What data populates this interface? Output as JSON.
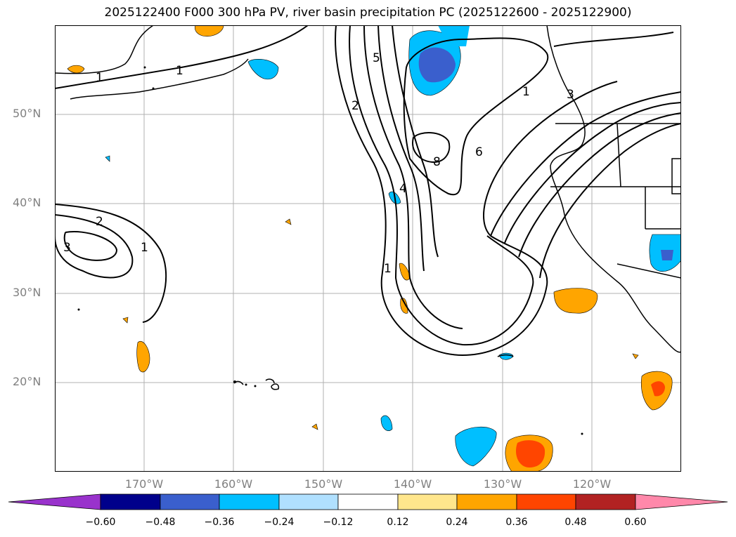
{
  "title": "2025122400 F000 300 hPa PV, river basin precipitation PC (2025122600 - 2025122900)",
  "lat_labels": [
    "50°N",
    "40°N",
    "30°N",
    "20°N"
  ],
  "lon_labels": [
    "170°W",
    "160°W",
    "150°W",
    "140°W",
    "130°W",
    "120°W"
  ],
  "contour_labels": [
    "1",
    "1",
    "2",
    "3",
    "1",
    "1",
    "5",
    "2",
    "8",
    "6",
    "4",
    "3",
    "1"
  ],
  "colorbar": {
    "ticks": [
      "−0.60",
      "−0.48",
      "−0.36",
      "−0.24",
      "−0.12",
      "0.12",
      "0.24",
      "0.36",
      "0.48",
      "0.60"
    ],
    "colors": [
      "#9932cc",
      "#00008b",
      "#3a5fcd",
      "#00bfff",
      "#b0e0ff",
      "#ffffff",
      "#ffe68c",
      "#ffa500",
      "#ff4500",
      "#b22222",
      "#ff88aa"
    ]
  }
}
